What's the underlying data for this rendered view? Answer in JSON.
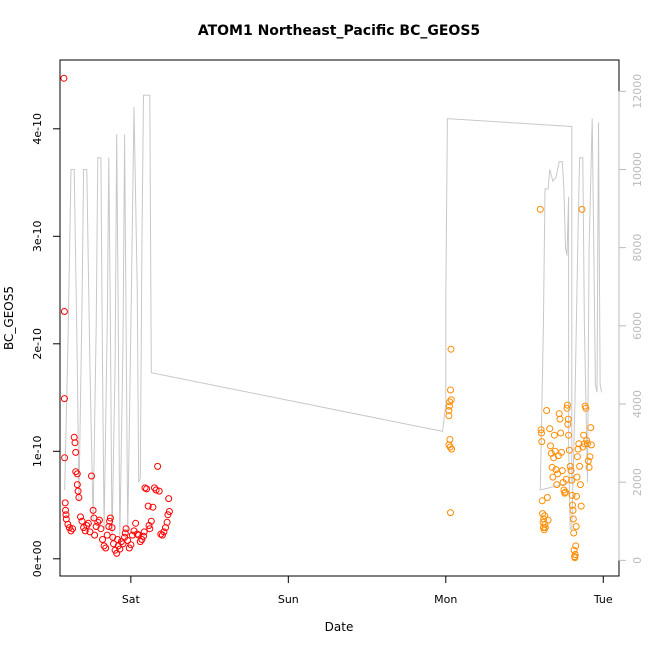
{
  "chart_data": {
    "type": "scatter",
    "title": "ATOM1 Northeast_Pacific BC_GEOS5",
    "xlabel": "Date",
    "ylabel": "BC_GEOS5",
    "x_ticks": [
      {
        "label": "Sat",
        "day": 1.0
      },
      {
        "label": "Sun",
        "day": 2.0
      },
      {
        "label": "Mon",
        "day": 3.0
      },
      {
        "label": "Tue",
        "day": 4.0
      }
    ],
    "xlim": [
      0.55,
      4.1
    ],
    "y_ticks": [
      {
        "label": "0e+00",
        "value": 0
      },
      {
        "label": "1e-10",
        "value": 1e-10
      },
      {
        "label": "2e-10",
        "value": 2e-10
      },
      {
        "label": "3e-10",
        "value": 3e-10
      },
      {
        "label": "4e-10",
        "value": 4e-10
      }
    ],
    "ylim": [
      -1.6e-11,
      4.64e-10
    ],
    "y2_ticks": [
      {
        "label": "0",
        "value": 0
      },
      {
        "label": "2000",
        "value": 2000
      },
      {
        "label": "4000",
        "value": 4000
      },
      {
        "label": "6000",
        "value": 6000
      },
      {
        "label": "8000",
        "value": 8000
      },
      {
        "label": "10000",
        "value": 10000
      },
      {
        "label": "12000",
        "value": 12000
      }
    ],
    "y2lim": [
      -400,
      12800
    ],
    "colors": {
      "series1": "#ff0000",
      "series2": "#ff8c00",
      "altitude": "#c8c8c8"
    },
    "altitude_line": [
      [
        0.58,
        1800
      ],
      [
        0.6,
        5500
      ],
      [
        0.62,
        10000
      ],
      [
        0.64,
        10000
      ],
      [
        0.66,
        5000
      ],
      [
        0.67,
        1500
      ],
      [
        0.69,
        6500
      ],
      [
        0.7,
        10000
      ],
      [
        0.72,
        10000
      ],
      [
        0.74,
        5000
      ],
      [
        0.76,
        1000
      ],
      [
        0.78,
        6000
      ],
      [
        0.79,
        10300
      ],
      [
        0.81,
        10300
      ],
      [
        0.82,
        5000
      ],
      [
        0.83,
        800
      ],
      [
        0.85,
        6000
      ],
      [
        0.86,
        10300
      ],
      [
        0.87,
        6000
      ],
      [
        0.88,
        500
      ],
      [
        0.9,
        5000
      ],
      [
        0.91,
        10900
      ],
      [
        0.92,
        6000
      ],
      [
        0.93,
        500
      ],
      [
        0.95,
        5500
      ],
      [
        0.96,
        10900
      ],
      [
        0.97,
        6000
      ],
      [
        0.98,
        700
      ],
      [
        1.0,
        6000
      ],
      [
        1.02,
        11600
      ],
      [
        1.04,
        7000
      ],
      [
        1.05,
        2000
      ],
      [
        1.06,
        2100
      ],
      [
        1.07,
        8000
      ],
      [
        1.08,
        11900
      ],
      [
        1.12,
        11900
      ],
      [
        1.13,
        4800
      ],
      [
        2.98,
        3300
      ],
      [
        3.0,
        4000
      ],
      [
        3.0,
        6700
      ],
      [
        3.01,
        11300
      ],
      [
        3.8,
        11100
      ],
      [
        3.8,
        2000
      ],
      [
        3.6,
        1800
      ],
      [
        3.62,
        6000
      ],
      [
        3.63,
        9500
      ],
      [
        3.65,
        9500
      ],
      [
        3.66,
        10000
      ],
      [
        3.68,
        9700
      ],
      [
        3.7,
        9800
      ],
      [
        3.72,
        10200
      ],
      [
        3.74,
        10200
      ],
      [
        3.75,
        9500
      ],
      [
        3.76,
        8000
      ],
      [
        3.77,
        7800
      ],
      [
        3.78,
        9300
      ],
      [
        3.78,
        3000
      ],
      [
        3.79,
        800
      ],
      [
        3.8,
        800
      ],
      [
        3.82,
        4000
      ],
      [
        3.84,
        8500
      ],
      [
        3.85,
        10300
      ],
      [
        3.87,
        10300
      ],
      [
        3.88,
        6000
      ],
      [
        3.9,
        2000
      ],
      [
        3.91,
        8000
      ],
      [
        3.93,
        11300
      ],
      [
        3.94,
        8000
      ],
      [
        3.95,
        4500
      ],
      [
        3.96,
        4300
      ],
      [
        3.97,
        11200
      ],
      [
        3.98,
        4500
      ],
      [
        3.99,
        4300
      ]
    ],
    "series": [
      {
        "points": [
          [
            0.575,
            4.47e-10
          ],
          [
            0.578,
            2.3e-10
          ],
          [
            0.578,
            1.49e-10
          ],
          [
            0.579,
            9.4e-11
          ],
          [
            0.583,
            5.2e-11
          ],
          [
            0.585,
            4.5e-11
          ],
          [
            0.588,
            4.1e-11
          ],
          [
            0.59,
            3.7e-11
          ],
          [
            0.6,
            3.2e-11
          ],
          [
            0.61,
            2.9e-11
          ],
          [
            0.62,
            2.6e-11
          ],
          [
            0.63,
            2.8e-11
          ],
          [
            0.64,
            1.13e-10
          ],
          [
            0.645,
            1.08e-10
          ],
          [
            0.65,
            9.9e-11
          ],
          [
            0.65,
            8.1e-11
          ],
          [
            0.66,
            7.9e-11
          ],
          [
            0.66,
            6.9e-11
          ],
          [
            0.665,
            6.3e-11
          ],
          [
            0.67,
            5.7e-11
          ],
          [
            0.68,
            3.9e-11
          ],
          [
            0.69,
            3.5e-11
          ],
          [
            0.7,
            2.9e-11
          ],
          [
            0.71,
            2.6e-11
          ],
          [
            0.72,
            3.1e-11
          ],
          [
            0.73,
            3.3e-11
          ],
          [
            0.74,
            2.5e-11
          ],
          [
            0.75,
            7.7e-11
          ],
          [
            0.76,
            4.5e-11
          ],
          [
            0.765,
            3.8e-11
          ],
          [
            0.77,
            2.2e-11
          ],
          [
            0.78,
            3e-11
          ],
          [
            0.79,
            3.4e-11
          ],
          [
            0.8,
            3.6e-11
          ],
          [
            0.81,
            2.8e-11
          ],
          [
            0.82,
            1.8e-11
          ],
          [
            0.83,
            1.2e-11
          ],
          [
            0.84,
            1e-11
          ],
          [
            0.85,
            2.2e-11
          ],
          [
            0.86,
            3e-11
          ],
          [
            0.865,
            3.5e-11
          ],
          [
            0.87,
            3.8e-11
          ],
          [
            0.88,
            2.9e-11
          ],
          [
            0.885,
            2e-11
          ],
          [
            0.89,
            1.4e-11
          ],
          [
            0.9,
            8e-12
          ],
          [
            0.91,
            5e-12
          ],
          [
            0.915,
            1.8e-11
          ],
          [
            0.92,
            1.2e-11
          ],
          [
            0.93,
            9e-12
          ],
          [
            0.94,
            1.6e-11
          ],
          [
            0.95,
            1.4e-11
          ],
          [
            0.96,
            2e-11
          ],
          [
            0.965,
            2.4e-11
          ],
          [
            0.97,
            2.8e-11
          ],
          [
            0.98,
            1.7e-11
          ],
          [
            0.99,
            1e-11
          ],
          [
            1.0,
            1.3e-11
          ],
          [
            1.01,
            2.2e-11
          ],
          [
            1.02,
            2.6e-11
          ],
          [
            1.03,
            3.3e-11
          ],
          [
            1.04,
            2.3e-11
          ],
          [
            1.05,
            2.2e-11
          ],
          [
            1.06,
            1.6e-11
          ],
          [
            1.07,
            1.8e-11
          ],
          [
            1.08,
            2.1e-11
          ],
          [
            1.085,
            2.5e-11
          ],
          [
            1.09,
            6.6e-11
          ],
          [
            1.1,
            6.5e-11
          ],
          [
            1.11,
            4.9e-11
          ],
          [
            1.115,
            3.1e-11
          ],
          [
            1.12,
            2.8e-11
          ],
          [
            1.13,
            3.5e-11
          ],
          [
            1.14,
            4.8e-11
          ],
          [
            1.15,
            6.6e-11
          ],
          [
            1.16,
            6.4e-11
          ],
          [
            1.17,
            8.6e-11
          ],
          [
            1.18,
            6.3e-11
          ],
          [
            1.19,
            2.3e-11
          ],
          [
            1.2,
            2.2e-11
          ],
          [
            1.21,
            2.5e-11
          ],
          [
            1.22,
            2.9e-11
          ],
          [
            1.23,
            3.4e-11
          ],
          [
            1.235,
            4.1e-11
          ],
          [
            1.24,
            5.6e-11
          ],
          [
            1.245,
            4.4e-11
          ]
        ]
      },
      {
        "points": [
          [
            3.02,
            1.38e-10
          ],
          [
            3.02,
            1.33e-10
          ],
          [
            3.02,
            1.06e-10
          ],
          [
            3.023,
            1.42e-10
          ],
          [
            3.025,
            1.46e-10
          ],
          [
            3.026,
            1.11e-10
          ],
          [
            3.028,
            1.04e-10
          ],
          [
            3.03,
            1.57e-10
          ],
          [
            3.03,
            4.3e-11
          ],
          [
            3.033,
            1.95e-10
          ],
          [
            3.035,
            1.48e-10
          ],
          [
            3.037,
            1.02e-10
          ],
          [
            3.6,
            3.25e-10
          ],
          [
            3.605,
            1.2e-10
          ],
          [
            3.608,
            1.17e-10
          ],
          [
            3.61,
            1.09e-10
          ],
          [
            3.612,
            5.4e-11
          ],
          [
            3.615,
            4.2e-11
          ],
          [
            3.618,
            3.4e-11
          ],
          [
            3.62,
            2.9e-11
          ],
          [
            3.622,
            3.7e-11
          ],
          [
            3.625,
            2.7e-11
          ],
          [
            3.628,
            4e-11
          ],
          [
            3.63,
            3.2e-11
          ],
          [
            3.632,
            2.9e-11
          ],
          [
            3.64,
            1.38e-10
          ],
          [
            3.645,
            5.7e-11
          ],
          [
            3.65,
            3.6e-11
          ],
          [
            3.66,
            1.21e-10
          ],
          [
            3.665,
            1.05e-10
          ],
          [
            3.67,
            9.8e-11
          ],
          [
            3.675,
            8.5e-11
          ],
          [
            3.68,
            7.6e-11
          ],
          [
            3.685,
            9.4e-11
          ],
          [
            3.69,
            1.15e-10
          ],
          [
            3.695,
            1e-10
          ],
          [
            3.7,
            8.3e-11
          ],
          [
            3.705,
            6.9e-11
          ],
          [
            3.71,
            7.9e-11
          ],
          [
            3.715,
            9.6e-11
          ],
          [
            3.72,
            1.35e-10
          ],
          [
            3.725,
            1.3e-10
          ],
          [
            3.73,
            1.17e-10
          ],
          [
            3.735,
            9.9e-11
          ],
          [
            3.74,
            8.2e-11
          ],
          [
            3.745,
            7.1e-11
          ],
          [
            3.75,
            6.4e-11
          ],
          [
            3.755,
            6.1e-11
          ],
          [
            3.76,
            6.2e-11
          ],
          [
            3.765,
            7.4e-11
          ],
          [
            3.77,
            1.4e-10
          ],
          [
            3.772,
            1.43e-10
          ],
          [
            3.775,
            1.25e-10
          ],
          [
            3.778,
            1.3e-10
          ],
          [
            3.78,
            1.15e-10
          ],
          [
            3.785,
            1.01e-10
          ],
          [
            3.79,
            8.6e-11
          ],
          [
            3.795,
            8.2e-11
          ],
          [
            3.8,
            7.3e-11
          ],
          [
            3.802,
            5.9e-11
          ],
          [
            3.805,
            5e-11
          ],
          [
            3.808,
            4.5e-11
          ],
          [
            3.81,
            3.7e-11
          ],
          [
            3.812,
            2.4e-11
          ],
          [
            3.815,
            8e-12
          ],
          [
            3.818,
            2e-12
          ],
          [
            3.82,
            1e-12
          ],
          [
            3.822,
            4e-12
          ],
          [
            3.825,
            1.2e-11
          ],
          [
            3.828,
            3e-11
          ],
          [
            3.83,
            5.8e-11
          ],
          [
            3.833,
            7.6e-11
          ],
          [
            3.836,
            9.5e-11
          ],
          [
            3.84,
            1.02e-10
          ],
          [
            3.845,
            1.07e-10
          ],
          [
            3.85,
            8.6e-11
          ],
          [
            3.855,
            6.9e-11
          ],
          [
            3.86,
            4.9e-11
          ],
          [
            3.865,
            3.25e-10
          ],
          [
            3.87,
            1.04e-10
          ],
          [
            3.875,
            1.15e-10
          ],
          [
            3.88,
            1.07e-10
          ],
          [
            3.885,
            1.42e-10
          ],
          [
            3.89,
            1.4e-10
          ],
          [
            3.895,
            1.1e-10
          ],
          [
            3.9,
            1.07e-10
          ],
          [
            3.905,
            9.1e-11
          ],
          [
            3.91,
            8.5e-11
          ],
          [
            3.915,
            9.5e-11
          ],
          [
            3.92,
            1.22e-10
          ],
          [
            3.925,
            1.06e-10
          ]
        ]
      }
    ]
  }
}
